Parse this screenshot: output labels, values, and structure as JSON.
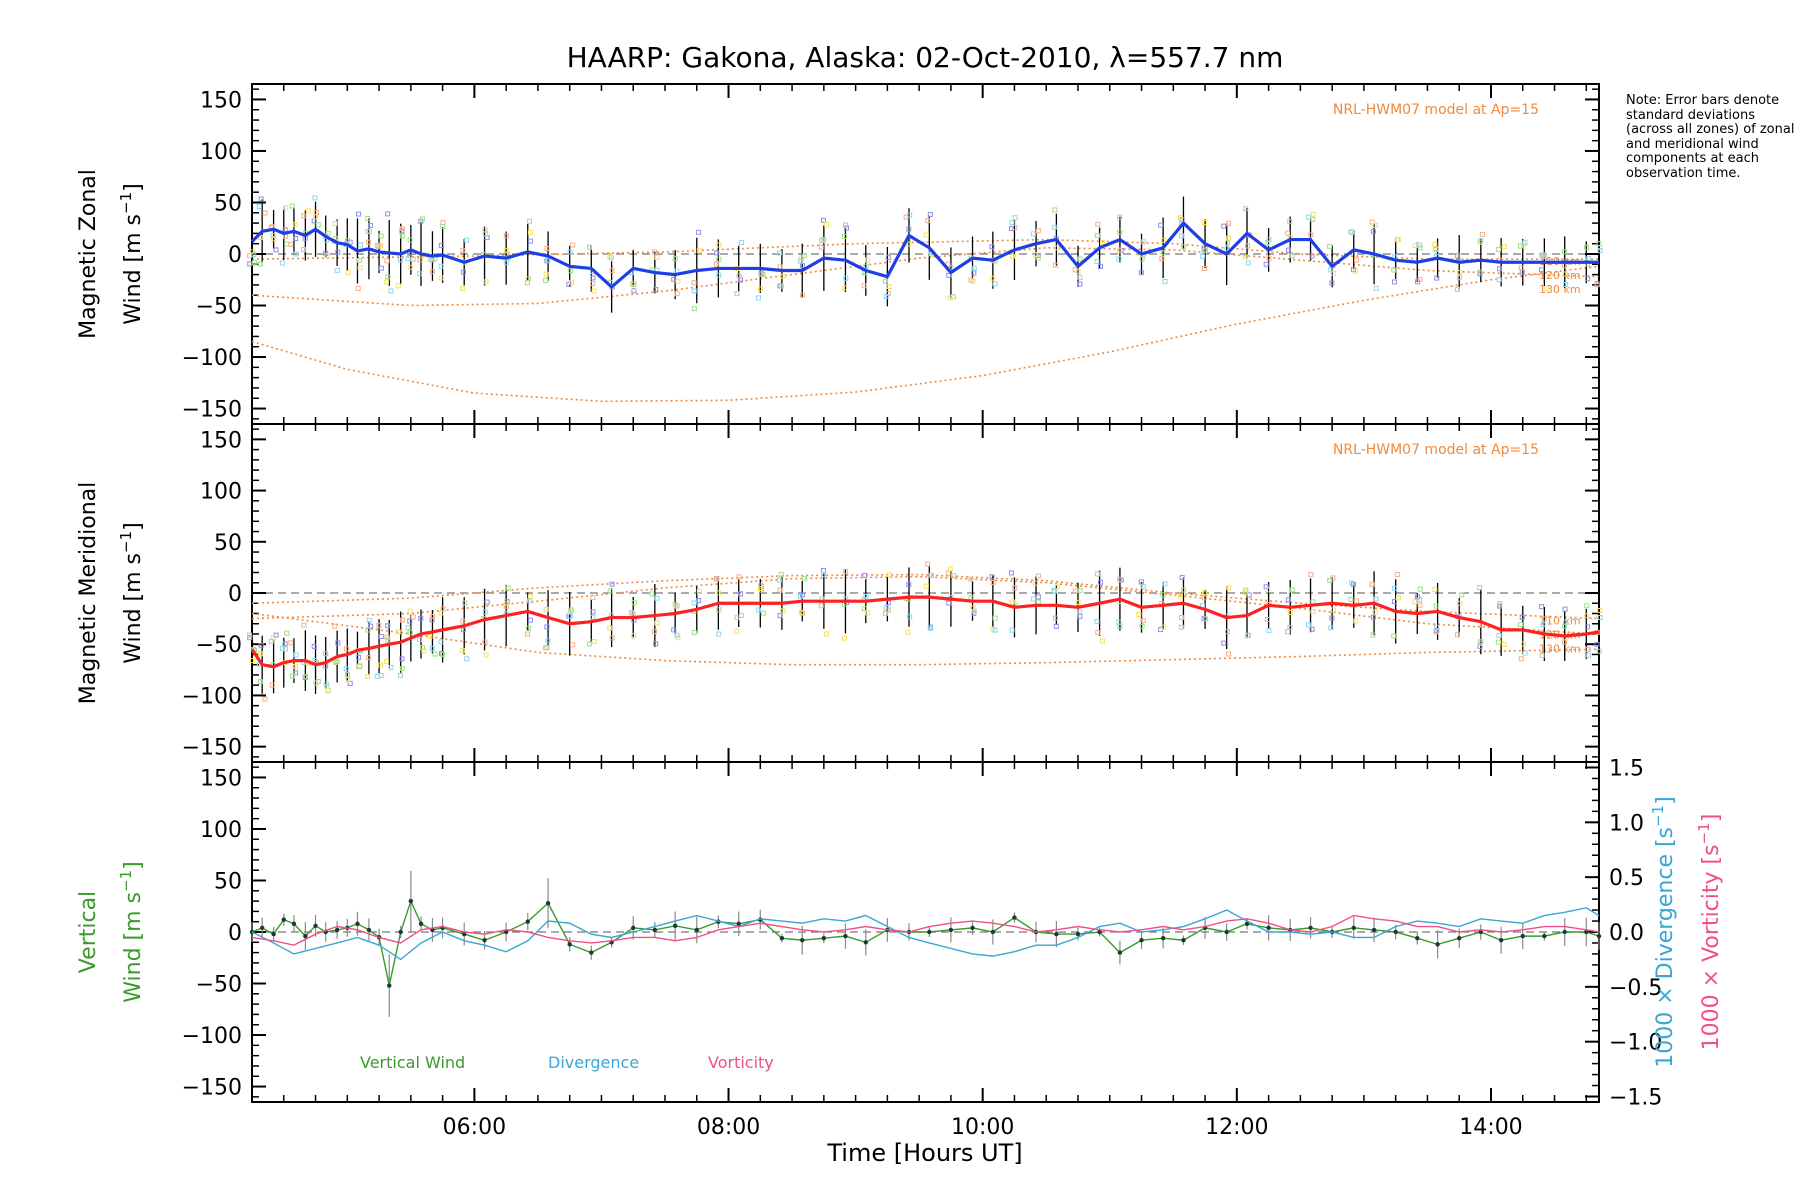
{
  "figure": {
    "title": "HAARP: Gakona,  Alaska: 02-Oct-2010, λ=557.7 nm",
    "xlabel": "Time [Hours UT]",
    "note": "Note: Error bars denote standard deviations (across all zones) of zonal and meridional wind components at each observation time."
  },
  "chart_data": [
    {
      "type": "line",
      "panel": "zonal",
      "ylabel_line1": "Magnetic Zonal",
      "ylabel_line2": "Wind [m s-1]",
      "xlim": [
        4.25,
        14.85
      ],
      "ylim": [
        -165,
        165
      ],
      "yticks": [
        -150,
        -100,
        -50,
        0,
        50,
        100,
        150
      ],
      "xticks": [
        6,
        8,
        10,
        12,
        14
      ],
      "xtick_labels": [
        "06:00",
        "08:00",
        "10:00",
        "12:00",
        "14:00"
      ],
      "model_label": "NRL-HWM07 model at Ap=15",
      "model_series_labels": [
        "110 km",
        "120 km",
        "130 km"
      ],
      "colors": {
        "series": "#1f3fe6",
        "errorbar": "#000000",
        "model": "#f08a3c"
      },
      "series": [
        {
          "x": [
            4.25,
            4.33,
            4.42,
            4.5,
            4.58,
            4.67,
            4.75,
            4.83,
            4.92,
            5.0,
            5.08,
            5.17,
            5.25,
            5.33,
            5.42,
            5.5,
            5.58,
            5.67,
            5.75,
            5.92,
            6.08,
            6.25,
            6.42,
            6.58,
            6.75,
            6.92,
            7.08,
            7.25,
            7.42,
            7.58,
            7.75,
            7.92,
            8.08,
            8.25,
            8.42,
            8.58,
            8.75,
            8.92,
            9.08,
            9.25,
            9.42,
            9.58,
            9.75,
            9.92,
            10.08,
            10.25,
            10.42,
            10.58,
            10.75,
            10.92,
            11.08,
            11.25,
            11.42,
            11.58,
            11.75,
            11.92,
            12.08,
            12.25,
            12.42,
            12.58,
            12.75,
            12.92,
            13.08,
            13.25,
            13.42,
            13.58,
            13.75,
            13.92,
            14.08,
            14.25,
            14.42,
            14.58,
            14.75,
            14.85
          ],
          "y": [
            12,
            22,
            24,
            20,
            22,
            18,
            24,
            17,
            11,
            9,
            3,
            5,
            2,
            1,
            0,
            4,
            0,
            -2,
            -1,
            -8,
            -2,
            -4,
            2,
            -2,
            -12,
            -14,
            -32,
            -14,
            -18,
            -20,
            -16,
            -14,
            -14,
            -14,
            -16,
            -16,
            -4,
            -6,
            -16,
            -22,
            18,
            6,
            -18,
            -4,
            -6,
            4,
            10,
            14,
            -12,
            6,
            14,
            0,
            6,
            30,
            10,
            0,
            20,
            4,
            14,
            14,
            -12,
            4,
            0,
            -6,
            -8,
            -4,
            -8,
            -6,
            -8,
            -8,
            -8,
            -8,
            -8,
            -8
          ]
        }
      ],
      "models": [
        {
          "name": "110 km",
          "x": [
            4.25,
            6.0,
            7.5,
            9.0,
            10.5,
            11.5,
            12.5,
            13.5,
            14.85
          ],
          "y": [
            -5,
            -2,
            2,
            10,
            14,
            10,
            0,
            -5,
            -5
          ]
        },
        {
          "name": "120 km",
          "x": [
            4.25,
            5.5,
            6.5,
            7.5,
            8.5,
            9.5,
            10.5,
            11.5,
            12.5,
            13.5,
            14.85
          ],
          "y": [
            -40,
            -50,
            -48,
            -36,
            -20,
            -4,
            6,
            4,
            -6,
            -16,
            -22
          ]
        },
        {
          "name": "130 km",
          "x": [
            4.25,
            5.0,
            6.0,
            7.0,
            8.0,
            9.0,
            10.0,
            11.0,
            12.0,
            13.0,
            14.0,
            14.85
          ],
          "y": [
            -85,
            -112,
            -135,
            -143,
            -142,
            -134,
            -118,
            -95,
            -68,
            -45,
            -25,
            -12
          ]
        }
      ]
    },
    {
      "type": "line",
      "panel": "meridional",
      "ylabel_line1": "Magnetic Meridional",
      "ylabel_line2": "Wind [m s-1]",
      "xlim": [
        4.25,
        14.85
      ],
      "ylim": [
        -165,
        165
      ],
      "yticks": [
        -150,
        -100,
        -50,
        0,
        50,
        100,
        150
      ],
      "model_label": "NRL-HWM07 model at Ap=15",
      "model_series_labels": [
        "110 km",
        "120 km",
        "130 km"
      ],
      "colors": {
        "series": "#ff2020",
        "errorbar": "#000000",
        "model": "#f08a3c"
      },
      "series": [
        {
          "x": [
            4.25,
            4.33,
            4.42,
            4.5,
            4.58,
            4.67,
            4.75,
            4.83,
            4.92,
            5.0,
            5.08,
            5.17,
            5.25,
            5.33,
            5.42,
            5.5,
            5.58,
            5.67,
            5.75,
            5.92,
            6.08,
            6.25,
            6.42,
            6.58,
            6.75,
            6.92,
            7.08,
            7.25,
            7.42,
            7.58,
            7.75,
            7.92,
            8.08,
            8.25,
            8.42,
            8.58,
            8.75,
            8.92,
            9.08,
            9.25,
            9.42,
            9.58,
            9.75,
            9.92,
            10.08,
            10.25,
            10.42,
            10.58,
            10.75,
            10.92,
            11.08,
            11.25,
            11.42,
            11.58,
            11.75,
            11.92,
            12.08,
            12.25,
            12.42,
            12.58,
            12.75,
            12.92,
            13.08,
            13.25,
            13.42,
            13.58,
            13.75,
            13.92,
            14.08,
            14.25,
            14.42,
            14.58,
            14.75,
            14.85
          ],
          "y": [
            -55,
            -70,
            -72,
            -68,
            -66,
            -66,
            -70,
            -68,
            -62,
            -60,
            -56,
            -54,
            -52,
            -50,
            -48,
            -44,
            -40,
            -38,
            -36,
            -32,
            -26,
            -22,
            -18,
            -24,
            -30,
            -28,
            -24,
            -24,
            -22,
            -20,
            -16,
            -10,
            -10,
            -10,
            -10,
            -8,
            -8,
            -8,
            -8,
            -6,
            -4,
            -4,
            -6,
            -8,
            -8,
            -14,
            -12,
            -12,
            -14,
            -10,
            -6,
            -14,
            -12,
            -10,
            -16,
            -24,
            -22,
            -12,
            -14,
            -12,
            -10,
            -12,
            -10,
            -18,
            -20,
            -18,
            -24,
            -28,
            -36,
            -36,
            -40,
            -42,
            -40,
            -38
          ]
        }
      ],
      "models": [
        {
          "name": "110 km",
          "x": [
            4.25,
            5.5,
            6.5,
            7.5,
            8.5,
            9.5,
            10.5,
            11.5,
            12.5,
            13.5,
            14.85
          ],
          "y": [
            -10,
            -5,
            5,
            12,
            17,
            18,
            12,
            0,
            -10,
            -18,
            -25
          ]
        },
        {
          "name": "120 km",
          "x": [
            4.25,
            5.5,
            6.5,
            7.5,
            8.5,
            9.5,
            10.5,
            11.5,
            12.5,
            13.5,
            14.85
          ],
          "y": [
            -25,
            -20,
            -8,
            5,
            14,
            16,
            10,
            -2,
            -15,
            -30,
            -40
          ]
        },
        {
          "name": "130 km",
          "x": [
            4.25,
            5.5,
            6.5,
            7.5,
            8.5,
            9.5,
            10.5,
            11.5,
            12.5,
            13.5,
            14.85
          ],
          "y": [
            -20,
            -40,
            -58,
            -66,
            -70,
            -70,
            -68,
            -65,
            -62,
            -58,
            -55
          ]
        }
      ]
    },
    {
      "type": "line",
      "panel": "vertical",
      "ylabel_line1": "Vertical",
      "ylabel_line2": "Wind [m s-1]",
      "y2label_a": "1000 × Divergence [s-1]",
      "y2label_b": "1000 × Vorticity [s-1]",
      "xlim": [
        4.25,
        14.85
      ],
      "ylim": [
        -165,
        165
      ],
      "y2lim": [
        -1.55,
        1.55
      ],
      "yticks": [
        -150,
        -100,
        -50,
        0,
        50,
        100,
        150
      ],
      "y2ticks": [
        -1.5,
        -1.0,
        -0.5,
        0.0,
        0.5,
        1.0,
        1.5
      ],
      "y2tick_labels": [
        "−1.5",
        "−1.0",
        "−0.5",
        "0.0",
        "0.5",
        "1.0",
        "1.5"
      ],
      "legend": [
        "Vertical Wind",
        "Divergence",
        "Vorticity"
      ],
      "colors": {
        "Vertical Wind": "#3a9a2a",
        "Divergence": "#3aa6d6",
        "Vorticity": "#f0508a"
      },
      "series": [
        {
          "name": "Vertical Wind",
          "axis": "left",
          "x": [
            4.25,
            4.33,
            4.42,
            4.5,
            4.58,
            4.67,
            4.75,
            4.83,
            4.92,
            5.0,
            5.08,
            5.17,
            5.25,
            5.33,
            5.42,
            5.5,
            5.58,
            5.67,
            5.75,
            5.92,
            6.08,
            6.25,
            6.42,
            6.58,
            6.75,
            6.92,
            7.08,
            7.25,
            7.42,
            7.58,
            7.75,
            7.92,
            8.08,
            8.25,
            8.42,
            8.58,
            8.75,
            8.92,
            9.08,
            9.25,
            9.42,
            9.58,
            9.75,
            9.92,
            10.08,
            10.25,
            10.42,
            10.58,
            10.75,
            10.92,
            11.08,
            11.25,
            11.42,
            11.58,
            11.75,
            11.92,
            12.08,
            12.25,
            12.42,
            12.58,
            12.75,
            12.92,
            13.08,
            13.25,
            13.42,
            13.58,
            13.75,
            13.92,
            14.08,
            14.25,
            14.42,
            14.58,
            14.75,
            14.85
          ],
          "y": [
            0,
            4,
            -2,
            12,
            8,
            -4,
            6,
            0,
            2,
            4,
            8,
            2,
            -5,
            -52,
            0,
            30,
            8,
            2,
            4,
            -2,
            -8,
            0,
            10,
            28,
            -12,
            -20,
            -10,
            4,
            2,
            6,
            2,
            10,
            8,
            12,
            -6,
            -8,
            -6,
            -4,
            -10,
            2,
            0,
            0,
            2,
            4,
            0,
            14,
            0,
            -2,
            -2,
            0,
            -20,
            -8,
            -6,
            -8,
            4,
            0,
            8,
            4,
            2,
            4,
            0,
            4,
            2,
            0,
            -6,
            -12,
            -6,
            0,
            -8,
            -4,
            -4,
            0,
            0,
            -4
          ]
        },
        {
          "name": "Divergence",
          "axis": "right",
          "x": [
            4.25,
            4.42,
            4.58,
            4.75,
            4.92,
            5.08,
            5.25,
            5.42,
            5.58,
            5.75,
            5.92,
            6.08,
            6.25,
            6.42,
            6.58,
            6.75,
            6.92,
            7.08,
            7.25,
            7.42,
            7.58,
            7.75,
            7.92,
            8.08,
            8.25,
            8.42,
            8.58,
            8.75,
            8.92,
            9.08,
            9.25,
            9.42,
            9.58,
            9.75,
            9.92,
            10.08,
            10.25,
            10.42,
            10.58,
            10.75,
            10.92,
            11.08,
            11.25,
            11.42,
            11.58,
            11.75,
            11.92,
            12.08,
            12.25,
            12.42,
            12.58,
            12.75,
            12.92,
            13.08,
            13.25,
            13.42,
            13.58,
            13.75,
            13.92,
            14.08,
            14.25,
            14.42,
            14.58,
            14.75,
            14.85
          ],
          "y": [
            0.0,
            -0.1,
            -0.2,
            -0.15,
            -0.1,
            -0.05,
            -0.12,
            -0.25,
            -0.1,
            0.0,
            -0.08,
            -0.12,
            -0.18,
            -0.08,
            0.1,
            0.08,
            -0.02,
            -0.05,
            0.0,
            0.05,
            0.1,
            0.15,
            0.1,
            0.05,
            0.12,
            0.1,
            0.08,
            0.12,
            0.1,
            0.15,
            0.05,
            -0.05,
            -0.1,
            -0.15,
            -0.2,
            -0.22,
            -0.18,
            -0.12,
            -0.12,
            -0.05,
            0.05,
            0.08,
            0.0,
            0.02,
            0.05,
            0.12,
            0.2,
            0.1,
            0.0,
            0.0,
            -0.02,
            0.0,
            -0.05,
            -0.05,
            0.05,
            0.1,
            0.08,
            0.05,
            0.12,
            0.1,
            0.08,
            0.15,
            0.18,
            0.22,
            0.15
          ]
        },
        {
          "name": "Vorticity",
          "axis": "right",
          "x": [
            4.25,
            4.42,
            4.58,
            4.75,
            4.92,
            5.08,
            5.25,
            5.42,
            5.58,
            5.75,
            5.92,
            6.08,
            6.25,
            6.42,
            6.58,
            6.75,
            6.92,
            7.08,
            7.25,
            7.42,
            7.58,
            7.75,
            7.92,
            8.08,
            8.25,
            8.42,
            8.58,
            8.75,
            8.92,
            9.08,
            9.25,
            9.42,
            9.58,
            9.75,
            9.92,
            10.08,
            10.25,
            10.42,
            10.58,
            10.75,
            10.92,
            11.08,
            11.25,
            11.42,
            11.58,
            11.75,
            11.92,
            12.08,
            12.25,
            12.42,
            12.58,
            12.75,
            12.92,
            13.08,
            13.25,
            13.42,
            13.58,
            13.75,
            13.92,
            14.08,
            14.25,
            14.42,
            14.58,
            14.75,
            14.85
          ],
          "y": [
            -0.05,
            -0.08,
            -0.12,
            -0.02,
            0.05,
            0.02,
            -0.05,
            -0.1,
            0.02,
            0.05,
            0.0,
            -0.02,
            0.02,
            0.0,
            -0.05,
            -0.08,
            -0.1,
            -0.08,
            -0.05,
            -0.05,
            -0.08,
            -0.05,
            0.02,
            0.05,
            0.08,
            0.05,
            0.02,
            0.0,
            0.02,
            0.05,
            0.02,
            0.0,
            0.05,
            0.08,
            0.1,
            0.08,
            0.05,
            0.0,
            0.02,
            0.05,
            0.02,
            0.0,
            0.02,
            0.05,
            0.02,
            0.05,
            0.1,
            0.12,
            0.08,
            0.02,
            0.0,
            0.05,
            0.15,
            0.12,
            0.1,
            0.05,
            0.05,
            0.0,
            0.02,
            0.0,
            0.02,
            0.05,
            0.05,
            0.02,
            0.0
          ]
        }
      ]
    }
  ]
}
